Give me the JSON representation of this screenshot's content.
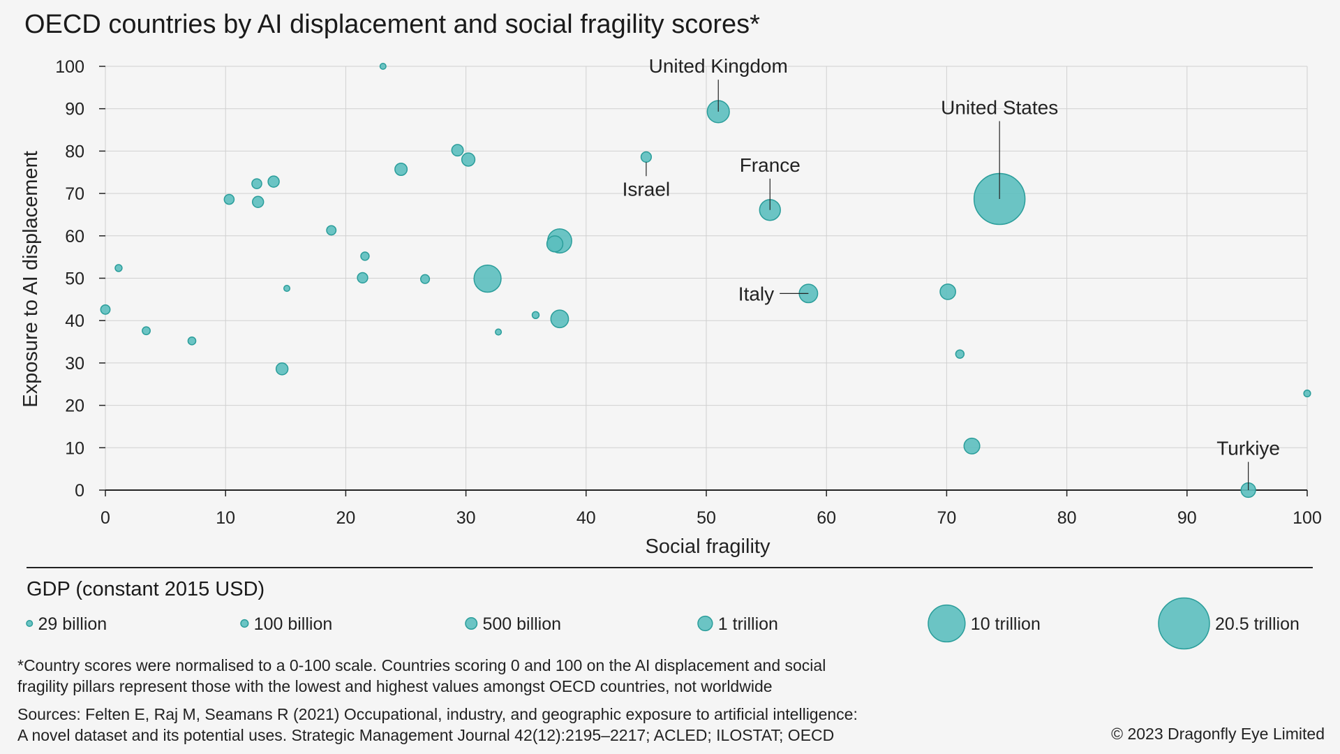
{
  "chart_data": {
    "type": "scatter",
    "title": "OECD countries by AI displacement and social fragility scores*",
    "xlabel": "Social fragility",
    "ylabel": "Exposure to AI displacement",
    "xlim": [
      0,
      100
    ],
    "ylim": [
      0,
      100
    ],
    "xticks": [
      "0",
      "10",
      "20",
      "30",
      "40",
      "50",
      "60",
      "70",
      "80",
      "90",
      "100"
    ],
    "yticks": [
      "0",
      "10",
      "20",
      "30",
      "40",
      "50",
      "60",
      "70",
      "80",
      "90",
      "100"
    ],
    "grid": true,
    "size_legend_title": "GDP (constant 2015 USD)",
    "size_legend": [
      {
        "label": "29 billion",
        "gdp_trillion": 0.029
      },
      {
        "label": "100 billion",
        "gdp_trillion": 0.1
      },
      {
        "label": "500 billion",
        "gdp_trillion": 0.5
      },
      {
        "label": "1 trillion",
        "gdp_trillion": 1
      },
      {
        "label": "10 trillion",
        "gdp_trillion": 10
      },
      {
        "label": "20.5 trillion",
        "gdp_trillion": 20.5
      }
    ],
    "points": [
      {
        "name": "United Kingdom",
        "x": 51,
        "y": 89.3,
        "gdp_trillion": 3.0
      },
      {
        "name": "United States",
        "x": 74.4,
        "y": 68.7,
        "gdp_trillion": 20.5
      },
      {
        "name": "Israel",
        "x": 45,
        "y": 78.6,
        "gdp_trillion": 0.35
      },
      {
        "name": "France",
        "x": 55.3,
        "y": 66.1,
        "gdp_trillion": 2.6
      },
      {
        "name": "Italy",
        "x": 58.5,
        "y": 46.4,
        "gdp_trillion": 1.9
      },
      {
        "name": "Turkiye",
        "x": 95.1,
        "y": 0,
        "gdp_trillion": 1.0
      },
      {
        "name": "",
        "x": 23.1,
        "y": 100,
        "gdp_trillion": 0.03
      },
      {
        "name": "",
        "x": 29.3,
        "y": 80.2,
        "gdp_trillion": 0.5
      },
      {
        "name": "",
        "x": 30.2,
        "y": 78,
        "gdp_trillion": 0.75
      },
      {
        "name": "",
        "x": 24.6,
        "y": 75.7,
        "gdp_trillion": 0.6
      },
      {
        "name": "",
        "x": 14,
        "y": 72.8,
        "gdp_trillion": 0.45
      },
      {
        "name": "",
        "x": 12.6,
        "y": 72.3,
        "gdp_trillion": 0.3
      },
      {
        "name": "",
        "x": 12.7,
        "y": 68,
        "gdp_trillion": 0.45
      },
      {
        "name": "",
        "x": 10.3,
        "y": 68.6,
        "gdp_trillion": 0.3
      },
      {
        "name": "",
        "x": 18.8,
        "y": 61.3,
        "gdp_trillion": 0.25
      },
      {
        "name": "",
        "x": 37.8,
        "y": 58.8,
        "gdp_trillion": 3.7
      },
      {
        "name": "",
        "x": 37.4,
        "y": 58.1,
        "gdp_trillion": 1.3
      },
      {
        "name": "",
        "x": 21.6,
        "y": 55.2,
        "gdp_trillion": 0.16
      },
      {
        "name": "",
        "x": 1.1,
        "y": 52.4,
        "gdp_trillion": 0.07
      },
      {
        "name": "",
        "x": 31.8,
        "y": 49.9,
        "gdp_trillion": 4.9
      },
      {
        "name": "",
        "x": 21.4,
        "y": 50.1,
        "gdp_trillion": 0.35
      },
      {
        "name": "",
        "x": 26.6,
        "y": 49.8,
        "gdp_trillion": 0.2
      },
      {
        "name": "",
        "x": 15.1,
        "y": 47.6,
        "gdp_trillion": 0.03
      },
      {
        "name": "",
        "x": 0,
        "y": 42.6,
        "gdp_trillion": 0.25
      },
      {
        "name": "",
        "x": 35.8,
        "y": 41.3,
        "gdp_trillion": 0.07
      },
      {
        "name": "",
        "x": 37.8,
        "y": 40.4,
        "gdp_trillion": 1.7
      },
      {
        "name": "",
        "x": 32.7,
        "y": 37.3,
        "gdp_trillion": 0.03
      },
      {
        "name": "",
        "x": 3.4,
        "y": 37.6,
        "gdp_trillion": 0.13
      },
      {
        "name": "",
        "x": 7.2,
        "y": 35.2,
        "gdp_trillion": 0.12
      },
      {
        "name": "",
        "x": 70.1,
        "y": 46.8,
        "gdp_trillion": 1.2
      },
      {
        "name": "",
        "x": 71.1,
        "y": 32.1,
        "gdp_trillion": 0.16
      },
      {
        "name": "",
        "x": 14.7,
        "y": 28.6,
        "gdp_trillion": 0.55
      },
      {
        "name": "",
        "x": 100,
        "y": 22.8,
        "gdp_trillion": 0.06
      },
      {
        "name": "",
        "x": 72.1,
        "y": 10.4,
        "gdp_trillion": 1.25
      }
    ]
  },
  "footnote": {
    "line1": "*Country scores were normalised to a 0-100 scale. Countries scoring 0 and 100 on the AI displacement and social",
    "line2": "fragility pillars represent those with the lowest and highest values amongst OECD countries, not worldwide"
  },
  "sources": {
    "line1": "Sources: Felten E, Raj M, Seamans R (2021) Occupational, industry, and geographic exposure to artificial intelligence:",
    "line2": "A novel dataset and its potential uses. Strategic Management Journal 42(12):2195–2217; ACLED; ILOSTAT; OECD"
  },
  "copyright": "© 2023 Dragonfly Eye Limited",
  "colors": {
    "bubble_fill": "#5cbfbf",
    "bubble_stroke": "#2a9d9a",
    "grid": "#d0d0d0",
    "axis": "#222222"
  }
}
